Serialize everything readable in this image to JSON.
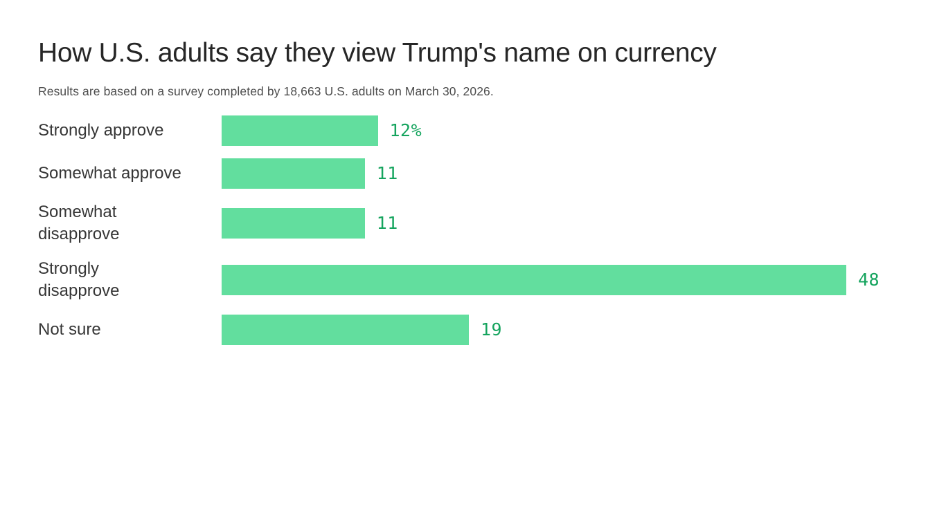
{
  "chart": {
    "title": "How U.S. adults say they view Trump's name on currency",
    "subtitle": "Results are based on a survey completed by 18,663 U.S. adults on March 30, 2026."
  },
  "chart_data": {
    "type": "bar",
    "orientation": "horizontal",
    "title": "How U.S. adults say they view Trump's name on currency",
    "subtitle": "Results are based on a survey completed by 18,663 U.S. adults on March 30, 2026.",
    "categories": [
      "Strongly approve",
      "Somewhat approve",
      "Somewhat disapprove",
      "Strongly disapprove",
      "Not sure"
    ],
    "display_labels": [
      "Strongly approve",
      "Somewhat approve",
      "Somewhat\ndisapprove",
      "Strongly\ndisapprove",
      "Not sure"
    ],
    "values": [
      12,
      11,
      11,
      48,
      19
    ],
    "value_labels": [
      "12%",
      "11",
      "11",
      "48",
      "19"
    ],
    "xlabel": "",
    "ylabel": "",
    "xlim": [
      0,
      48
    ],
    "grid": false,
    "legend": false,
    "bar_color": "#62de9e",
    "value_color": "#15a45e",
    "label_color": "#363636",
    "title_color": "#262626",
    "subtitle_color": "#4d4d4d",
    "background_color": "#ffffff"
  }
}
